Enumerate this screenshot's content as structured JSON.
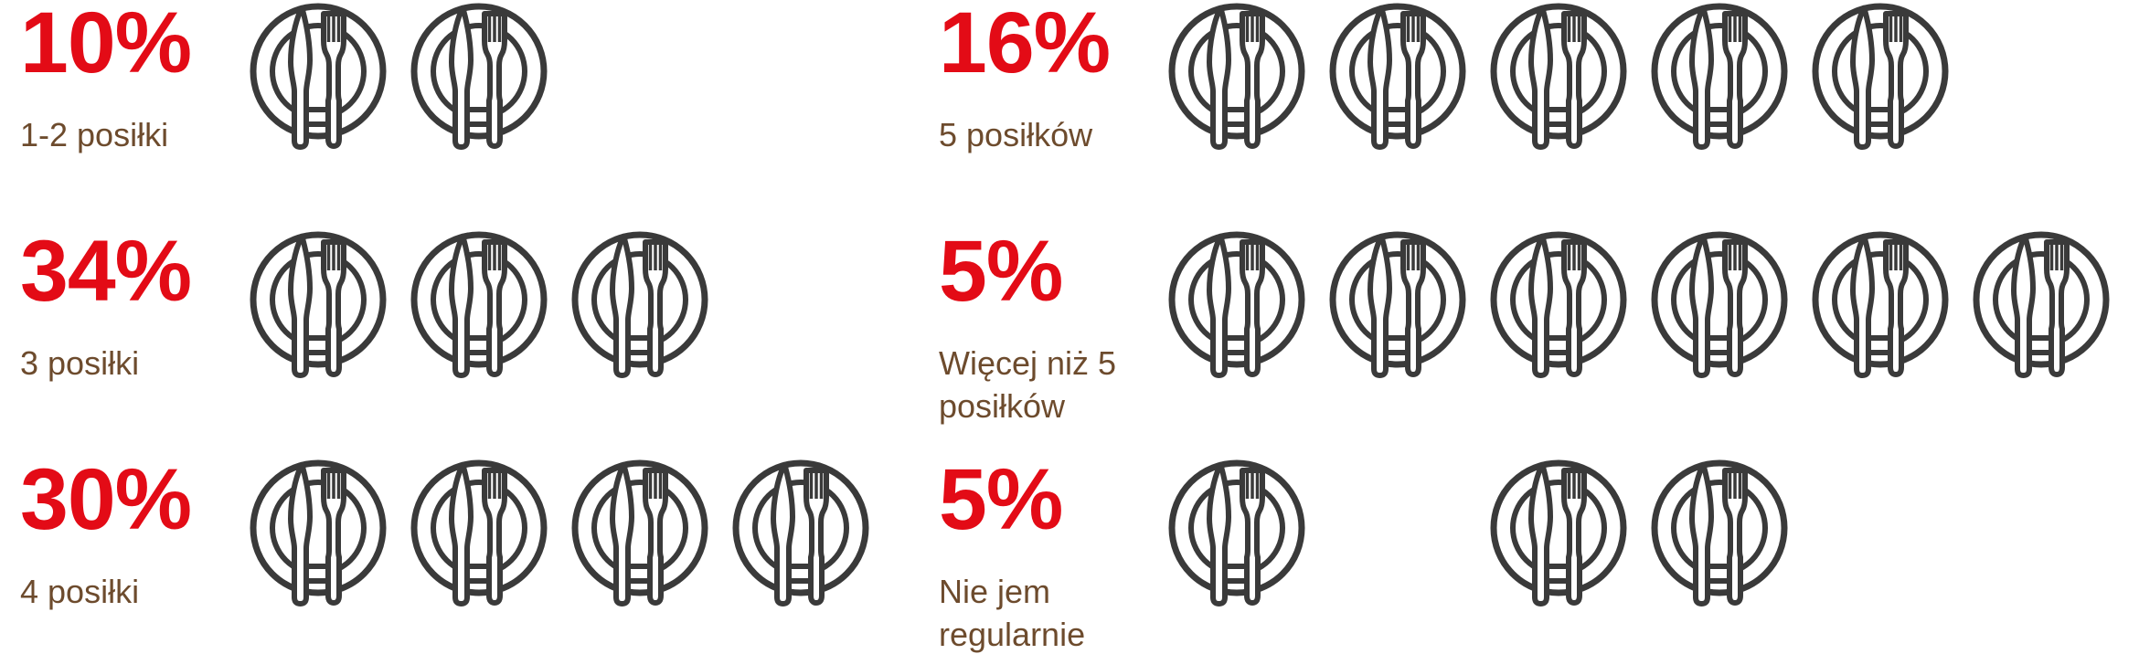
{
  "colors": {
    "percent": "#e30b16",
    "label": "#6d4b2d",
    "icon": "#3a3a3a",
    "background": "#ffffff"
  },
  "icon_name": "plate-with-knife-and-fork-icon",
  "chart_data": {
    "type": "bar",
    "variant": "pictogram",
    "unit": "%",
    "note": "Each plate-with-cutlery icon represents one daily meal; the 'Nie jem regularnie' row shows icons irregularly spaced (second slot empty).",
    "categories": [
      "1-2 posiłki",
      "3 posiłki",
      "4 posiłki",
      "5 posiłków",
      "Więcej niż 5 posiłków",
      "Nie jem regularnie"
    ],
    "values": [
      10,
      34,
      30,
      16,
      5,
      5
    ],
    "legend_position": "none",
    "grid": false,
    "groups": [
      {
        "percent_label": "10%",
        "value": 10,
        "label": "1-2 posiłki",
        "icon_count": 2,
        "slots": [
          1,
          1
        ],
        "column": 1,
        "row": 1
      },
      {
        "percent_label": "34%",
        "value": 34,
        "label": "3 posiłki",
        "icon_count": 3,
        "slots": [
          1,
          1,
          1
        ],
        "column": 1,
        "row": 2
      },
      {
        "percent_label": "30%",
        "value": 30,
        "label": "4 posiłki",
        "icon_count": 4,
        "slots": [
          1,
          1,
          1,
          1
        ],
        "column": 1,
        "row": 3
      },
      {
        "percent_label": "16%",
        "value": 16,
        "label": "5 posiłków",
        "icon_count": 5,
        "slots": [
          1,
          1,
          1,
          1,
          1
        ],
        "column": 2,
        "row": 1
      },
      {
        "percent_label": "5%",
        "value": 5,
        "label": "Więcej niż 5 posiłków",
        "icon_count": 6,
        "slots": [
          1,
          1,
          1,
          1,
          1,
          1
        ],
        "column": 2,
        "row": 2
      },
      {
        "percent_label": "5%",
        "value": 5,
        "label": "Nie jem regularnie",
        "icon_count": 3,
        "slots": [
          1,
          0,
          1,
          1
        ],
        "column": 2,
        "row": 3
      }
    ]
  }
}
